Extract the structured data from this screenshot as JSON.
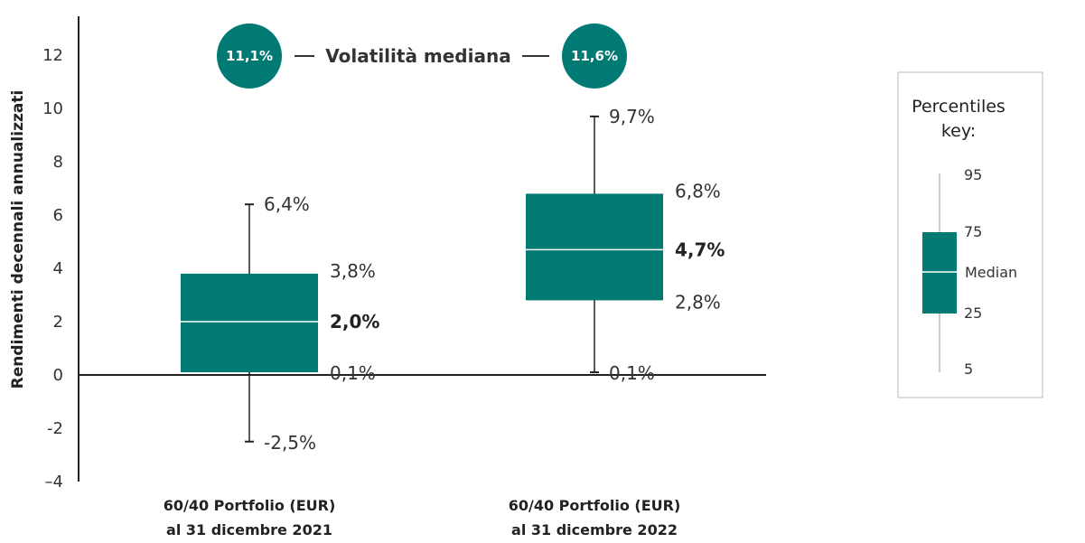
{
  "colors": {
    "box": "#007a73",
    "axis": "#222222",
    "text": "#333333"
  },
  "volatility": {
    "title": "Volatilità mediana",
    "left_value": "11,1%",
    "right_value": "11,6%"
  },
  "chart_data": {
    "type": "box",
    "ylabel": "Rendimenti decennali annualizzati",
    "ylim": [
      -4,
      13
    ],
    "yticks": [
      {
        "value": 12,
        "label": "12"
      },
      {
        "value": 10,
        "label": "10"
      },
      {
        "value": 8,
        "label": "8"
      },
      {
        "value": 6,
        "label": "6"
      },
      {
        "value": 4,
        "label": "4"
      },
      {
        "value": 2,
        "label": "2"
      },
      {
        "value": 0,
        "label": "0"
      },
      {
        "value": -2,
        "label": "-2"
      },
      {
        "value": -4,
        "label": "–4"
      }
    ],
    "grid": false,
    "boxes": [
      {
        "category_line1": "60/40 Portfolio (EUR)",
        "category_line2": "al 31 dicembre 2021",
        "p5": -2.5,
        "p25": 0.1,
        "median": 2.0,
        "p75": 3.8,
        "p95": 6.4,
        "labels": {
          "p5": "-2,5%",
          "p25": "0,1%",
          "median": "2,0%",
          "p75": "3,8%",
          "p95": "6,4%"
        }
      },
      {
        "category_line1": "60/40 Portfolio (EUR)",
        "category_line2": "al 31 dicembre 2022",
        "p5": 0.1,
        "p25": 2.8,
        "median": 4.7,
        "p75": 6.8,
        "p95": 9.7,
        "labels": {
          "p5": "0,1%",
          "p25": "2,8%",
          "median": "4,7%",
          "p75": "6,8%",
          "p95": "9,7%"
        }
      }
    ]
  },
  "key": {
    "title_line1": "Percentiles",
    "title_line2": "key:",
    "p95": "95",
    "p75": "75",
    "median": "Median",
    "p25": "25",
    "p5": "5"
  }
}
